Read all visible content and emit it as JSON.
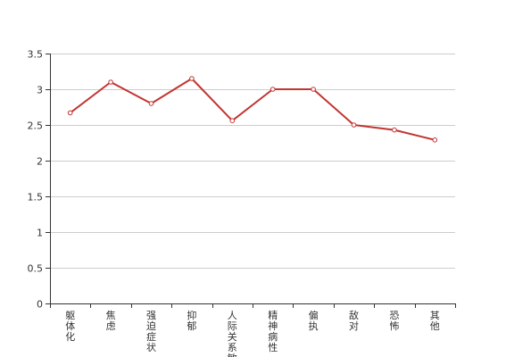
{
  "chart_data": {
    "type": "line",
    "categories": [
      "躯体化",
      "焦虑",
      "强迫症状",
      "抑郁",
      "人际关系敏感",
      "精神病性",
      "偏执",
      "敌对",
      "恐怖",
      "其他"
    ],
    "series": [
      {
        "values": [
          2.67,
          3.1,
          2.8,
          3.15,
          2.56,
          3.0,
          3.0,
          2.5,
          2.43,
          2.29
        ]
      }
    ],
    "ylim": [
      0,
      3.5
    ],
    "yticks": [
      0,
      0.5,
      1,
      1.5,
      2,
      2.5,
      3,
      3.5
    ],
    "ytick_labels": [
      "0",
      "0.5",
      "1",
      "1.5",
      "2",
      "2.5",
      "3",
      "3.5"
    ],
    "grid": true,
    "colors": {
      "line": "#c23531",
      "grid": "#cccccc",
      "axis": "#333333"
    }
  }
}
